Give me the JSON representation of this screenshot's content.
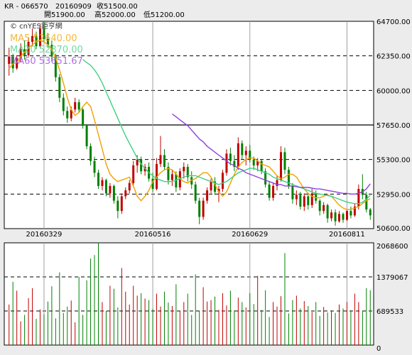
{
  "header": {
    "symbol": "KR - 066570",
    "date": "20160909",
    "close": "收51500.00",
    "open": "開51900.00",
    "high": "高52000.00",
    "low": "低51200.00"
  },
  "watermark": "© cnYES鉅亨網",
  "legend": {
    "ma5": "MA5 52640.00",
    "ma20": "MA20 52870.00",
    "ma60": "MA60 53651.67"
  },
  "colors": {
    "up": "#c00000",
    "down": "#008000",
    "ma5": "#f0a000",
    "ma20": "#40d080",
    "ma60": "#9040e0",
    "dashed_grid": "#000000",
    "vertical_grid": "#a0a0a0",
    "background": "#ffffff"
  },
  "chart_data": [
    {
      "type": "candlestick",
      "y_ticks": [
        "64700.00",
        "62350.00",
        "60000.00",
        "57650.00",
        "55300.00",
        "52950.00",
        "50600.00"
      ],
      "ylim": [
        50600,
        64700
      ],
      "x_labels": [
        "20160329",
        "20160516",
        "20160629",
        "20160811"
      ],
      "series": [
        {
          "name": "MA5",
          "values": [
            61500,
            61800,
            61900,
            62300,
            62600,
            62900,
            63100,
            63300,
            63400,
            63300,
            63100,
            62800,
            62200,
            61400,
            60500,
            59500,
            58700,
            58300,
            58500,
            58900,
            59200,
            58900,
            58000,
            57000,
            56000,
            55000,
            54300,
            54000,
            53800,
            53900,
            54000,
            54100,
            53500,
            52800,
            52500,
            52800,
            53200,
            53800,
            54100,
            54400,
            54600,
            54700,
            54600,
            54300,
            54000,
            53800,
            53700,
            53900,
            54000,
            54200,
            54400,
            54400,
            54100,
            53600,
            53100,
            52800,
            53100,
            53700,
            54300,
            54800,
            55100,
            55300,
            55400,
            55400,
            55200,
            55000,
            54900,
            54800,
            54500,
            54200,
            54000,
            54100,
            54300,
            54300,
            54100,
            53700,
            53300,
            53000,
            52800,
            52700,
            52700,
            52800,
            52900,
            52800,
            52500,
            52200,
            52000,
            51900,
            51900,
            52000,
            52100,
            52300,
            52500,
            52640
          ]
        },
        {
          "name": "MA20",
          "values": [
            null,
            null,
            null,
            null,
            null,
            null,
            null,
            null,
            null,
            null,
            null,
            null,
            null,
            null,
            null,
            null,
            null,
            null,
            null,
            62100,
            61900,
            61700,
            61400,
            61000,
            60500,
            59900,
            59300,
            58700,
            58100,
            57500,
            56900,
            56400,
            55900,
            55400,
            55000,
            54700,
            54400,
            54200,
            54000,
            53900,
            53800,
            53800,
            53800,
            53900,
            54000,
            54100,
            54200,
            54200,
            54200,
            54100,
            54000,
            53900,
            53800,
            53700,
            53600,
            53700,
            53800,
            54000,
            54200,
            54400,
            54500,
            54600,
            54700,
            54700,
            54600,
            54500,
            54400,
            54300,
            54100,
            54000,
            53900,
            53800,
            53700,
            53600,
            53500,
            53400,
            53300,
            53200,
            53100,
            53000,
            52950,
            52900,
            52850,
            52800,
            52700,
            52600,
            52500,
            52400,
            52350,
            52300,
            52300,
            52400,
            52600,
            52870
          ]
        },
        {
          "name": "MA60",
          "values": [
            null,
            null,
            null,
            null,
            null,
            null,
            null,
            null,
            null,
            null,
            null,
            null,
            null,
            null,
            null,
            null,
            null,
            null,
            null,
            null,
            null,
            null,
            null,
            null,
            null,
            null,
            null,
            null,
            null,
            null,
            null,
            null,
            null,
            null,
            null,
            null,
            null,
            null,
            null,
            null,
            null,
            null,
            58400,
            58200,
            58000,
            57800,
            57600,
            57300,
            57000,
            56700,
            56500,
            56200,
            56000,
            55800,
            55600,
            55400,
            55200,
            55000,
            54900,
            54700,
            54600,
            54400,
            54300,
            54200,
            54100,
            54000,
            53900,
            53800,
            53700,
            53600,
            53600,
            53500,
            53500,
            53500,
            53450,
            53400,
            53400,
            53400,
            53350,
            53300,
            53300,
            53250,
            53200,
            53150,
            53100,
            53050,
            53000,
            53000,
            52950,
            52950,
            53000,
            53100,
            53300,
            53651.67
          ]
        }
      ],
      "candles": [
        {
          "o": 61800,
          "h": 62900,
          "l": 61000,
          "c": 62300
        },
        {
          "o": 62300,
          "h": 62500,
          "l": 61200,
          "c": 61500
        },
        {
          "o": 61500,
          "h": 62400,
          "l": 61400,
          "c": 62200
        },
        {
          "o": 62200,
          "h": 63200,
          "l": 61900,
          "c": 62800
        },
        {
          "o": 62800,
          "h": 63400,
          "l": 62100,
          "c": 62400
        },
        {
          "o": 62400,
          "h": 63600,
          "l": 62300,
          "c": 63300
        },
        {
          "o": 63300,
          "h": 64200,
          "l": 63000,
          "c": 63700
        },
        {
          "o": 63700,
          "h": 64000,
          "l": 62800,
          "c": 63000
        },
        {
          "o": 63000,
          "h": 64500,
          "l": 62900,
          "c": 64200
        },
        {
          "o": 64200,
          "h": 64700,
          "l": 63300,
          "c": 63500
        },
        {
          "o": 63500,
          "h": 63900,
          "l": 62900,
          "c": 63100
        },
        {
          "o": 63100,
          "h": 63400,
          "l": 62000,
          "c": 62300
        },
        {
          "o": 62300,
          "h": 62500,
          "l": 60600,
          "c": 60900
        },
        {
          "o": 60900,
          "h": 61100,
          "l": 59200,
          "c": 59500
        },
        {
          "o": 59500,
          "h": 59800,
          "l": 58300,
          "c": 58600
        },
        {
          "o": 58600,
          "h": 58900,
          "l": 57800,
          "c": 58100
        },
        {
          "o": 58100,
          "h": 58900,
          "l": 57900,
          "c": 58700
        },
        {
          "o": 58700,
          "h": 59500,
          "l": 58500,
          "c": 59200
        },
        {
          "o": 59200,
          "h": 59400,
          "l": 58500,
          "c": 58700
        },
        {
          "o": 58700,
          "h": 58800,
          "l": 57400,
          "c": 57600
        },
        {
          "o": 57600,
          "h": 57700,
          "l": 56000,
          "c": 56200
        },
        {
          "o": 56200,
          "h": 56400,
          "l": 54900,
          "c": 55200
        },
        {
          "o": 55200,
          "h": 55500,
          "l": 54100,
          "c": 54400
        },
        {
          "o": 54400,
          "h": 54600,
          "l": 53300,
          "c": 53500
        },
        {
          "o": 53500,
          "h": 54100,
          "l": 53200,
          "c": 53900
        },
        {
          "o": 53900,
          "h": 54000,
          "l": 52800,
          "c": 53000
        },
        {
          "o": 53000,
          "h": 53700,
          "l": 52700,
          "c": 53500
        },
        {
          "o": 53500,
          "h": 53600,
          "l": 52300,
          "c": 52500
        },
        {
          "o": 52500,
          "h": 52800,
          "l": 51300,
          "c": 51800
        },
        {
          "o": 51800,
          "h": 53000,
          "l": 51600,
          "c": 52800
        },
        {
          "o": 52800,
          "h": 53400,
          "l": 52600,
          "c": 53200
        },
        {
          "o": 53200,
          "h": 53900,
          "l": 53000,
          "c": 53700
        },
        {
          "o": 53700,
          "h": 55200,
          "l": 53500,
          "c": 54900
        },
        {
          "o": 54900,
          "h": 55600,
          "l": 54400,
          "c": 55300
        },
        {
          "o": 55300,
          "h": 55500,
          "l": 54300,
          "c": 54500
        },
        {
          "o": 54500,
          "h": 55000,
          "l": 54200,
          "c": 54800
        },
        {
          "o": 54800,
          "h": 55100,
          "l": 53800,
          "c": 54000
        },
        {
          "o": 54000,
          "h": 54400,
          "l": 53100,
          "c": 53300
        },
        {
          "o": 53300,
          "h": 55400,
          "l": 53200,
          "c": 55000
        },
        {
          "o": 55000,
          "h": 56900,
          "l": 54800,
          "c": 55600
        },
        {
          "o": 55600,
          "h": 56000,
          "l": 54600,
          "c": 54800
        },
        {
          "o": 54800,
          "h": 55100,
          "l": 53600,
          "c": 53900
        },
        {
          "o": 53900,
          "h": 54600,
          "l": 53500,
          "c": 54300
        },
        {
          "o": 54300,
          "h": 54500,
          "l": 53100,
          "c": 53400
        },
        {
          "o": 53400,
          "h": 54700,
          "l": 53200,
          "c": 54500
        },
        {
          "o": 54500,
          "h": 55100,
          "l": 54000,
          "c": 54800
        },
        {
          "o": 54800,
          "h": 55000,
          "l": 53800,
          "c": 54100
        },
        {
          "o": 54100,
          "h": 54500,
          "l": 53300,
          "c": 53600
        },
        {
          "o": 53600,
          "h": 53800,
          "l": 52300,
          "c": 52500
        },
        {
          "o": 52500,
          "h": 52700,
          "l": 50900,
          "c": 51400
        },
        {
          "o": 51400,
          "h": 52700,
          "l": 51200,
          "c": 52500
        },
        {
          "o": 52500,
          "h": 53400,
          "l": 52300,
          "c": 53200
        },
        {
          "o": 53200,
          "h": 54000,
          "l": 53000,
          "c": 53800
        },
        {
          "o": 53800,
          "h": 54100,
          "l": 52900,
          "c": 53100
        },
        {
          "o": 53100,
          "h": 53500,
          "l": 52400,
          "c": 53300
        },
        {
          "o": 53300,
          "h": 54600,
          "l": 53100,
          "c": 54400
        },
        {
          "o": 54400,
          "h": 56000,
          "l": 54200,
          "c": 55700
        },
        {
          "o": 55700,
          "h": 56100,
          "l": 54900,
          "c": 55200
        },
        {
          "o": 55200,
          "h": 55600,
          "l": 54500,
          "c": 54800
        },
        {
          "o": 54800,
          "h": 56800,
          "l": 54600,
          "c": 56400
        },
        {
          "o": 56400,
          "h": 56600,
          "l": 55300,
          "c": 55600
        },
        {
          "o": 55600,
          "h": 56200,
          "l": 54900,
          "c": 55900
        },
        {
          "o": 55900,
          "h": 56300,
          "l": 55100,
          "c": 55300
        },
        {
          "o": 55300,
          "h": 55500,
          "l": 54600,
          "c": 54900
        },
        {
          "o": 54900,
          "h": 55400,
          "l": 54500,
          "c": 55200
        },
        {
          "o": 55200,
          "h": 55300,
          "l": 54300,
          "c": 54500
        },
        {
          "o": 54500,
          "h": 54700,
          "l": 53400,
          "c": 53600
        },
        {
          "o": 53600,
          "h": 53800,
          "l": 52500,
          "c": 52700
        },
        {
          "o": 52700,
          "h": 53700,
          "l": 52500,
          "c": 53500
        },
        {
          "o": 53500,
          "h": 54200,
          "l": 53200,
          "c": 53900
        },
        {
          "o": 53900,
          "h": 56200,
          "l": 53800,
          "c": 55800
        },
        {
          "o": 55800,
          "h": 56100,
          "l": 54300,
          "c": 54600
        },
        {
          "o": 54600,
          "h": 54800,
          "l": 53300,
          "c": 53500
        },
        {
          "o": 53500,
          "h": 53700,
          "l": 52300,
          "c": 52600
        },
        {
          "o": 52600,
          "h": 53200,
          "l": 52200,
          "c": 52900
        },
        {
          "o": 52900,
          "h": 53100,
          "l": 51900,
          "c": 52100
        },
        {
          "o": 52100,
          "h": 53000,
          "l": 51800,
          "c": 52800
        },
        {
          "o": 52800,
          "h": 52900,
          "l": 51900,
          "c": 52200
        },
        {
          "o": 52200,
          "h": 53300,
          "l": 52000,
          "c": 53000
        },
        {
          "o": 53000,
          "h": 53200,
          "l": 52300,
          "c": 52500
        },
        {
          "o": 52500,
          "h": 52600,
          "l": 51500,
          "c": 51800
        },
        {
          "o": 51800,
          "h": 52400,
          "l": 51600,
          "c": 52200
        },
        {
          "o": 52200,
          "h": 52300,
          "l": 51000,
          "c": 51300
        },
        {
          "o": 51300,
          "h": 51900,
          "l": 51100,
          "c": 51700
        },
        {
          "o": 51700,
          "h": 51900,
          "l": 50800,
          "c": 51100
        },
        {
          "o": 51100,
          "h": 51800,
          "l": 51000,
          "c": 51600
        },
        {
          "o": 51600,
          "h": 51700,
          "l": 51000,
          "c": 51200
        },
        {
          "o": 51200,
          "h": 51900,
          "l": 51100,
          "c": 51800
        },
        {
          "o": 51800,
          "h": 52100,
          "l": 51300,
          "c": 51500
        },
        {
          "o": 51500,
          "h": 52300,
          "l": 51400,
          "c": 52100
        },
        {
          "o": 52100,
          "h": 53600,
          "l": 51900,
          "c": 53300
        },
        {
          "o": 53300,
          "h": 54300,
          "l": 52600,
          "c": 52900
        },
        {
          "o": 52900,
          "h": 53100,
          "l": 51700,
          "c": 51900
        },
        {
          "o": 51900,
          "h": 52000,
          "l": 51200,
          "c": 51500
        }
      ]
    },
    {
      "type": "bar",
      "name": "volume",
      "y_ticks": [
        "2068600",
        "1379067",
        "689533",
        "0"
      ],
      "ylim": [
        0,
        2068600
      ],
      "values": [
        820000,
        1280000,
        1100000,
        480000,
        610000,
        950000,
        1150000,
        530000,
        720000,
        620000,
        880000,
        1190000,
        540000,
        1470000,
        650000,
        780000,
        900000,
        460000,
        1380000,
        610000,
        1310000,
        1750000,
        1820000,
        2068600,
        870000,
        690000,
        1200000,
        1140000,
        760000,
        1560000,
        1080000,
        820000,
        1200000,
        1000000,
        1050000,
        940000,
        910000,
        730000,
        1040000,
        780000,
        1080000,
        860000,
        790000,
        1230000,
        690000,
        870000,
        1040000,
        610000,
        1430000,
        700000,
        1170000,
        880000,
        910000,
        980000,
        710000,
        1050000,
        800000,
        1100000,
        700000,
        960000,
        870000,
        760000,
        1050000,
        830000,
        1400000,
        710000,
        1110000,
        570000,
        870000,
        780000,
        990000,
        1860000,
        640000,
        910000,
        1000000,
        740000,
        890000,
        790000,
        670000,
        870000,
        590000,
        770000,
        660000,
        700000,
        650000,
        820000,
        740000,
        870000,
        700000,
        1040000,
        870000,
        680000,
        1150000,
        1110000
      ]
    }
  ]
}
